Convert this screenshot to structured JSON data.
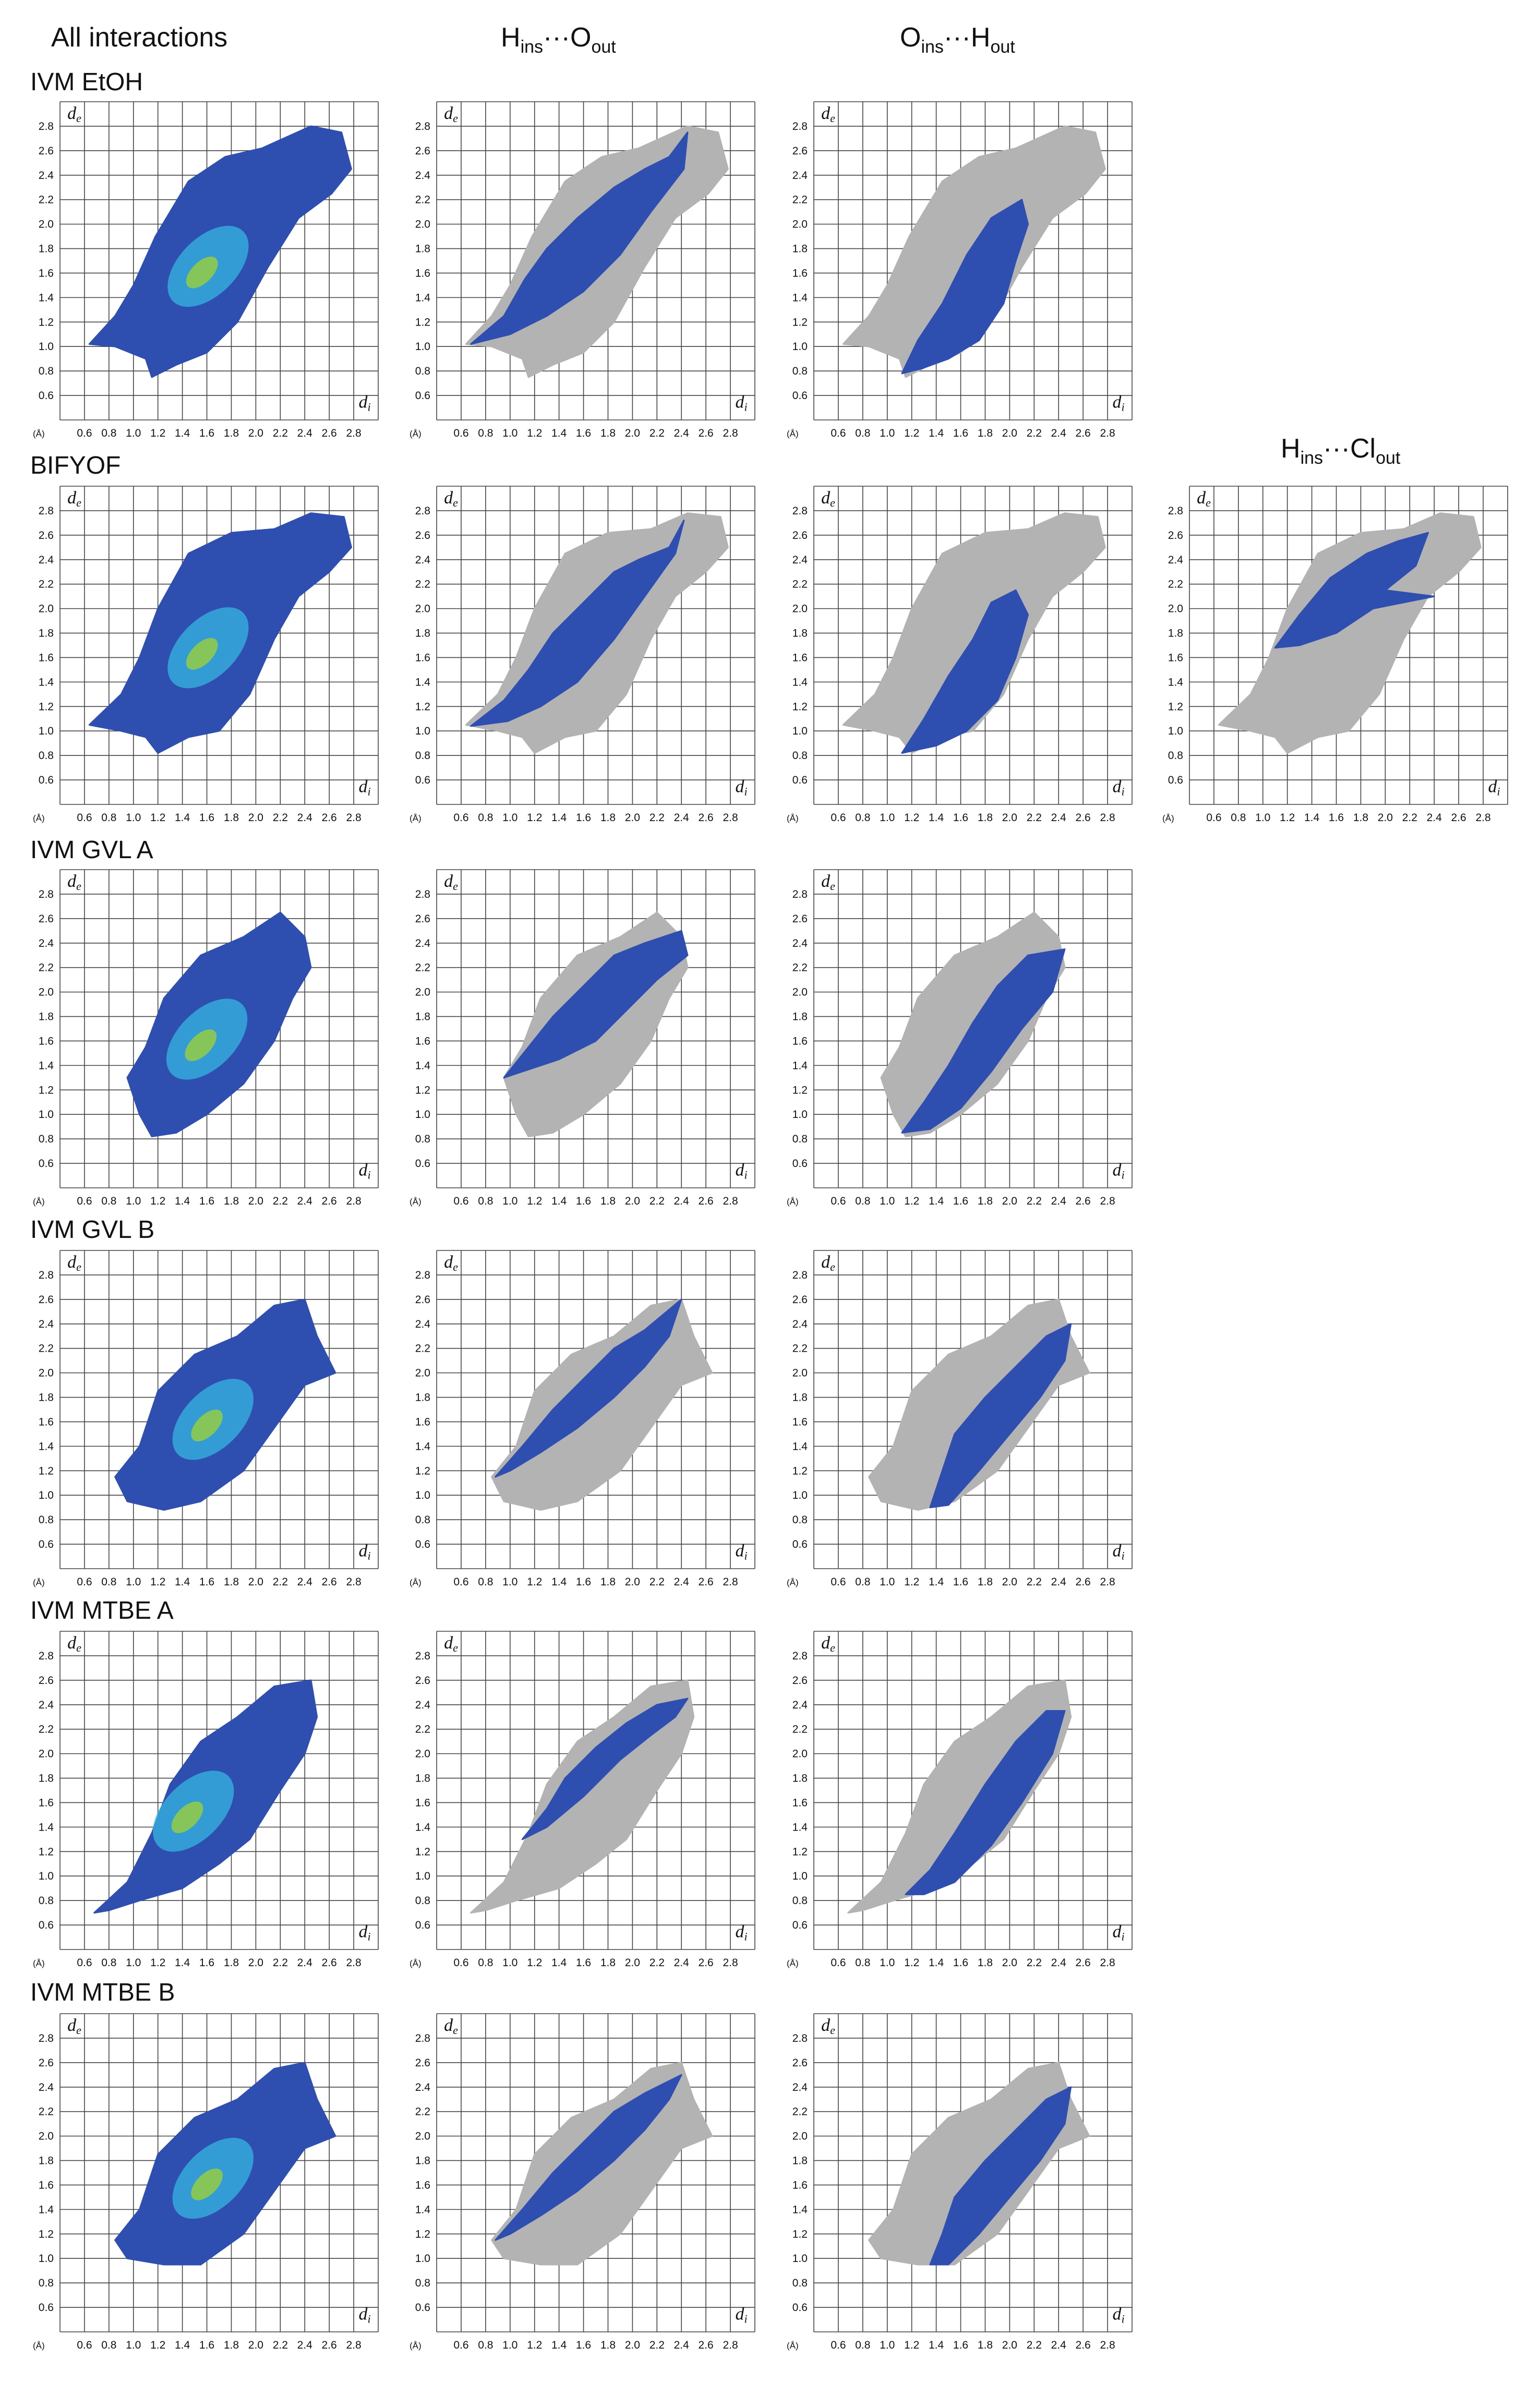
{
  "column_headers": {
    "all": "All interactions",
    "h_o": {
      "main1": "H",
      "sub1": "ins",
      "sep": "···",
      "main2": "O",
      "sub2": "out"
    },
    "o_h": {
      "main1": "O",
      "sub1": "ins",
      "sep": "···",
      "main2": "H",
      "sub2": "out"
    },
    "h_cl": {
      "main1": "H",
      "sub1": "ins",
      "sep": "···",
      "main2": "Cl",
      "sub2": "out"
    }
  },
  "rows": [
    {
      "title": "IVM EtOH"
    },
    {
      "title": "BIFYOF"
    },
    {
      "title": "IVM GVL A"
    },
    {
      "title": "IVM GVL B"
    },
    {
      "title": "IVM MTBE A"
    },
    {
      "title": "IVM MTBE B"
    }
  ],
  "colors": {
    "full": "#b3b3b3",
    "highlight": "#2f4fb0",
    "cyan": "#35b6e0",
    "green": "#9ad03a",
    "grid": "#444444"
  },
  "chart_data": {
    "type": "scatter",
    "description_kind": "Hirshfeld surface 2D fingerprint plots",
    "xlabel": "di",
    "ylabel": "de",
    "unit_label": "(Å)",
    "xlim": [
      0.4,
      3.0
    ],
    "ylim": [
      0.4,
      3.0
    ],
    "x_ticks": [
      "0.6",
      "0.8",
      "1.0",
      "1.2",
      "1.4",
      "1.6",
      "1.8",
      "2.0",
      "2.2",
      "2.4",
      "2.6",
      "2.8"
    ],
    "y_ticks": [
      "0.6",
      "0.8",
      "1.0",
      "1.2",
      "1.4",
      "1.6",
      "1.8",
      "2.0",
      "2.2",
      "2.4",
      "2.6",
      "2.8"
    ],
    "grid": true,
    "panels": [
      {
        "row": 0,
        "col": 0,
        "kind": "all",
        "shape": [
          [
            0.64,
            1.02
          ],
          [
            0.85,
            1.25
          ],
          [
            1.0,
            1.5
          ],
          [
            1.18,
            1.9
          ],
          [
            1.45,
            2.35
          ],
          [
            1.75,
            2.55
          ],
          [
            2.05,
            2.62
          ],
          [
            2.45,
            2.8
          ],
          [
            2.7,
            2.75
          ],
          [
            2.78,
            2.45
          ],
          [
            2.62,
            2.25
          ],
          [
            2.35,
            2.05
          ],
          [
            2.1,
            1.65
          ],
          [
            1.85,
            1.2
          ],
          [
            1.6,
            0.95
          ],
          [
            1.35,
            0.85
          ],
          [
            1.15,
            0.75
          ],
          [
            1.1,
            0.9
          ],
          [
            0.85,
            1.0
          ]
        ]
      },
      {
        "row": 0,
        "col": 1,
        "kind": "h_o",
        "shape": [
          [
            0.68,
            1.02
          ],
          [
            0.95,
            1.25
          ],
          [
            1.12,
            1.55
          ],
          [
            1.3,
            1.8
          ],
          [
            1.55,
            2.05
          ],
          [
            1.85,
            2.3
          ],
          [
            2.1,
            2.45
          ],
          [
            2.3,
            2.55
          ],
          [
            2.45,
            2.75
          ],
          [
            2.42,
            2.45
          ],
          [
            2.15,
            2.1
          ],
          [
            1.9,
            1.75
          ],
          [
            1.6,
            1.45
          ],
          [
            1.3,
            1.25
          ],
          [
            1.0,
            1.1
          ]
        ]
      },
      {
        "row": 0,
        "col": 2,
        "kind": "o_h",
        "shape": [
          [
            1.12,
            0.78
          ],
          [
            1.25,
            1.05
          ],
          [
            1.45,
            1.35
          ],
          [
            1.65,
            1.75
          ],
          [
            1.85,
            2.05
          ],
          [
            2.1,
            2.2
          ],
          [
            2.15,
            2.0
          ],
          [
            2.05,
            1.7
          ],
          [
            1.95,
            1.35
          ],
          [
            1.75,
            1.05
          ],
          [
            1.5,
            0.9
          ],
          [
            1.28,
            0.82
          ]
        ]
      },
      {
        "row": 1,
        "col": 0,
        "kind": "all",
        "shape": [
          [
            0.64,
            1.05
          ],
          [
            0.9,
            1.3
          ],
          [
            1.05,
            1.6
          ],
          [
            1.2,
            2.0
          ],
          [
            1.45,
            2.45
          ],
          [
            1.8,
            2.62
          ],
          [
            2.15,
            2.65
          ],
          [
            2.45,
            2.78
          ],
          [
            2.72,
            2.75
          ],
          [
            2.78,
            2.5
          ],
          [
            2.6,
            2.3
          ],
          [
            2.35,
            2.1
          ],
          [
            2.15,
            1.75
          ],
          [
            1.95,
            1.3
          ],
          [
            1.7,
            1.0
          ],
          [
            1.45,
            0.95
          ],
          [
            1.2,
            0.82
          ],
          [
            1.1,
            0.95
          ],
          [
            0.9,
            1.0
          ]
        ]
      },
      {
        "row": 1,
        "col": 1,
        "kind": "h_o",
        "shape": [
          [
            0.68,
            1.04
          ],
          [
            0.95,
            1.25
          ],
          [
            1.15,
            1.5
          ],
          [
            1.35,
            1.8
          ],
          [
            1.6,
            2.05
          ],
          [
            1.85,
            2.3
          ],
          [
            2.05,
            2.4
          ],
          [
            2.3,
            2.5
          ],
          [
            2.42,
            2.72
          ],
          [
            2.35,
            2.45
          ],
          [
            2.1,
            2.1
          ],
          [
            1.85,
            1.75
          ],
          [
            1.55,
            1.4
          ],
          [
            1.25,
            1.2
          ],
          [
            0.98,
            1.08
          ]
        ]
      },
      {
        "row": 1,
        "col": 2,
        "kind": "o_h",
        "shape": [
          [
            1.12,
            0.82
          ],
          [
            1.3,
            1.1
          ],
          [
            1.5,
            1.45
          ],
          [
            1.7,
            1.75
          ],
          [
            1.85,
            2.05
          ],
          [
            2.05,
            2.15
          ],
          [
            2.15,
            1.95
          ],
          [
            2.05,
            1.6
          ],
          [
            1.9,
            1.25
          ],
          [
            1.65,
            1.0
          ],
          [
            1.4,
            0.88
          ]
        ]
      },
      {
        "row": 1,
        "col": 3,
        "kind": "h_cl",
        "shape": [
          [
            1.1,
            1.68
          ],
          [
            1.3,
            1.95
          ],
          [
            1.55,
            2.25
          ],
          [
            1.85,
            2.45
          ],
          [
            2.1,
            2.55
          ],
          [
            2.35,
            2.62
          ],
          [
            2.25,
            2.35
          ],
          [
            2.0,
            2.15
          ],
          [
            2.4,
            2.1
          ],
          [
            1.9,
            2.0
          ],
          [
            1.6,
            1.8
          ],
          [
            1.3,
            1.7
          ]
        ]
      },
      {
        "row": 2,
        "col": 0,
        "kind": "all",
        "shape": [
          [
            0.95,
            1.3
          ],
          [
            1.1,
            1.55
          ],
          [
            1.25,
            1.95
          ],
          [
            1.55,
            2.3
          ],
          [
            1.9,
            2.45
          ],
          [
            2.2,
            2.65
          ],
          [
            2.4,
            2.45
          ],
          [
            2.45,
            2.2
          ],
          [
            2.3,
            1.95
          ],
          [
            2.15,
            1.6
          ],
          [
            1.9,
            1.25
          ],
          [
            1.6,
            1.0
          ],
          [
            1.35,
            0.85
          ],
          [
            1.15,
            0.82
          ],
          [
            1.05,
            1.0
          ]
        ]
      },
      {
        "row": 2,
        "col": 1,
        "kind": "h_o",
        "shape": [
          [
            0.95,
            1.3
          ],
          [
            1.15,
            1.55
          ],
          [
            1.35,
            1.8
          ],
          [
            1.6,
            2.05
          ],
          [
            1.85,
            2.3
          ],
          [
            2.1,
            2.4
          ],
          [
            2.4,
            2.5
          ],
          [
            2.45,
            2.3
          ],
          [
            2.2,
            2.1
          ],
          [
            1.95,
            1.85
          ],
          [
            1.7,
            1.6
          ],
          [
            1.4,
            1.45
          ],
          [
            1.1,
            1.35
          ]
        ]
      },
      {
        "row": 2,
        "col": 2,
        "kind": "o_h",
        "shape": [
          [
            1.12,
            0.85
          ],
          [
            1.3,
            1.1
          ],
          [
            1.5,
            1.4
          ],
          [
            1.7,
            1.75
          ],
          [
            1.9,
            2.05
          ],
          [
            2.15,
            2.3
          ],
          [
            2.45,
            2.35
          ],
          [
            2.35,
            2.0
          ],
          [
            2.1,
            1.7
          ],
          [
            1.85,
            1.35
          ],
          [
            1.6,
            1.05
          ],
          [
            1.35,
            0.88
          ]
        ]
      },
      {
        "row": 3,
        "col": 0,
        "kind": "all",
        "shape": [
          [
            0.85,
            1.15
          ],
          [
            1.05,
            1.4
          ],
          [
            1.2,
            1.85
          ],
          [
            1.5,
            2.15
          ],
          [
            1.85,
            2.3
          ],
          [
            2.15,
            2.55
          ],
          [
            2.4,
            2.6
          ],
          [
            2.5,
            2.3
          ],
          [
            2.65,
            2.0
          ],
          [
            2.4,
            1.9
          ],
          [
            2.15,
            1.55
          ],
          [
            1.9,
            1.2
          ],
          [
            1.55,
            0.95
          ],
          [
            1.25,
            0.88
          ],
          [
            0.95,
            0.95
          ]
        ]
      },
      {
        "row": 3,
        "col": 1,
        "kind": "h_o",
        "shape": [
          [
            0.88,
            1.15
          ],
          [
            1.1,
            1.4
          ],
          [
            1.35,
            1.7
          ],
          [
            1.6,
            1.95
          ],
          [
            1.85,
            2.2
          ],
          [
            2.1,
            2.35
          ],
          [
            2.4,
            2.6
          ],
          [
            2.3,
            2.3
          ],
          [
            2.1,
            2.05
          ],
          [
            1.85,
            1.8
          ],
          [
            1.55,
            1.55
          ],
          [
            1.25,
            1.35
          ],
          [
            1.0,
            1.2
          ]
        ]
      },
      {
        "row": 3,
        "col": 2,
        "kind": "o_h",
        "shape": [
          [
            1.35,
            0.9
          ],
          [
            1.45,
            1.2
          ],
          [
            1.55,
            1.5
          ],
          [
            1.8,
            1.8
          ],
          [
            2.05,
            2.05
          ],
          [
            2.3,
            2.3
          ],
          [
            2.5,
            2.4
          ],
          [
            2.45,
            2.1
          ],
          [
            2.25,
            1.8
          ],
          [
            2.0,
            1.5
          ],
          [
            1.75,
            1.2
          ],
          [
            1.5,
            0.92
          ]
        ]
      },
      {
        "row": 4,
        "col": 0,
        "kind": "all",
        "shape": [
          [
            0.68,
            0.7
          ],
          [
            0.95,
            0.95
          ],
          [
            1.15,
            1.35
          ],
          [
            1.3,
            1.75
          ],
          [
            1.55,
            2.1
          ],
          [
            1.85,
            2.3
          ],
          [
            2.15,
            2.55
          ],
          [
            2.45,
            2.6
          ],
          [
            2.5,
            2.3
          ],
          [
            2.4,
            2.0
          ],
          [
            2.2,
            1.7
          ],
          [
            1.95,
            1.3
          ],
          [
            1.7,
            1.1
          ],
          [
            1.4,
            0.9
          ],
          [
            1.05,
            0.8
          ],
          [
            0.8,
            0.72
          ]
        ]
      },
      {
        "row": 4,
        "col": 1,
        "kind": "h_o",
        "shape": [
          [
            1.1,
            1.3
          ],
          [
            1.3,
            1.55
          ],
          [
            1.45,
            1.8
          ],
          [
            1.7,
            2.05
          ],
          [
            1.95,
            2.25
          ],
          [
            2.2,
            2.4
          ],
          [
            2.45,
            2.45
          ],
          [
            2.35,
            2.3
          ],
          [
            2.15,
            2.15
          ],
          [
            1.9,
            1.95
          ],
          [
            1.6,
            1.65
          ],
          [
            1.3,
            1.4
          ]
        ]
      },
      {
        "row": 4,
        "col": 2,
        "kind": "o_h",
        "shape": [
          [
            1.15,
            0.85
          ],
          [
            1.35,
            1.05
          ],
          [
            1.55,
            1.35
          ],
          [
            1.8,
            1.75
          ],
          [
            2.05,
            2.1
          ],
          [
            2.3,
            2.35
          ],
          [
            2.45,
            2.35
          ],
          [
            2.35,
            2.0
          ],
          [
            2.1,
            1.6
          ],
          [
            1.85,
            1.25
          ],
          [
            1.55,
            0.95
          ],
          [
            1.3,
            0.85
          ]
        ]
      },
      {
        "row": 5,
        "col": 0,
        "kind": "all",
        "shape": [
          [
            0.85,
            1.15
          ],
          [
            1.05,
            1.4
          ],
          [
            1.2,
            1.85
          ],
          [
            1.5,
            2.15
          ],
          [
            1.85,
            2.3
          ],
          [
            2.15,
            2.55
          ],
          [
            2.4,
            2.6
          ],
          [
            2.5,
            2.3
          ],
          [
            2.65,
            2.0
          ],
          [
            2.4,
            1.9
          ],
          [
            2.15,
            1.55
          ],
          [
            1.9,
            1.2
          ],
          [
            1.55,
            0.95
          ],
          [
            1.25,
            0.95
          ],
          [
            0.95,
            1.0
          ]
        ]
      },
      {
        "row": 5,
        "col": 1,
        "kind": "h_o",
        "shape": [
          [
            0.88,
            1.15
          ],
          [
            1.1,
            1.4
          ],
          [
            1.35,
            1.7
          ],
          [
            1.6,
            1.95
          ],
          [
            1.85,
            2.2
          ],
          [
            2.1,
            2.35
          ],
          [
            2.4,
            2.5
          ],
          [
            2.3,
            2.3
          ],
          [
            2.1,
            2.05
          ],
          [
            1.85,
            1.8
          ],
          [
            1.55,
            1.55
          ],
          [
            1.25,
            1.35
          ],
          [
            1.0,
            1.2
          ]
        ]
      },
      {
        "row": 5,
        "col": 2,
        "kind": "o_h",
        "shape": [
          [
            1.35,
            0.95
          ],
          [
            1.45,
            1.2
          ],
          [
            1.55,
            1.5
          ],
          [
            1.8,
            1.8
          ],
          [
            2.05,
            2.05
          ],
          [
            2.3,
            2.3
          ],
          [
            2.5,
            2.4
          ],
          [
            2.45,
            2.1
          ],
          [
            2.25,
            1.8
          ],
          [
            2.0,
            1.5
          ],
          [
            1.75,
            1.2
          ],
          [
            1.5,
            0.95
          ]
        ]
      }
    ]
  }
}
